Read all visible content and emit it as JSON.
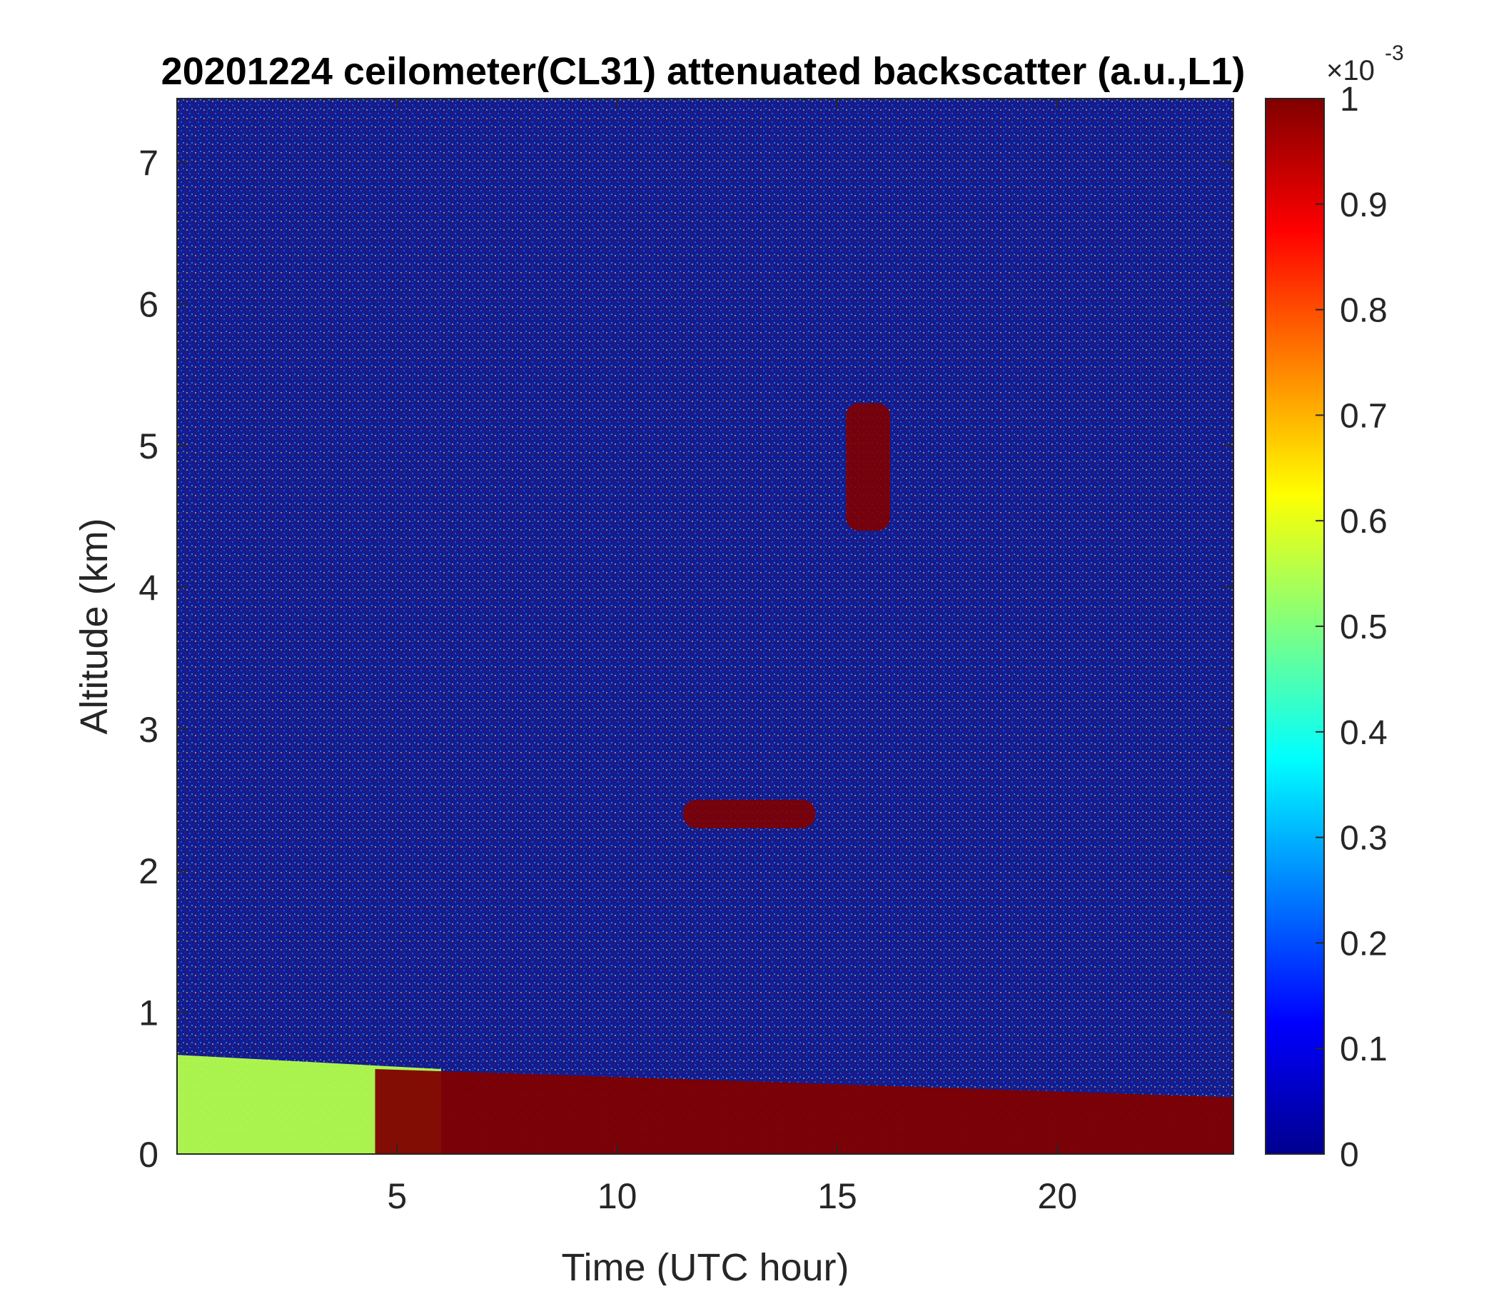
{
  "chart_data": {
    "type": "heatmap",
    "title": "20201224 ceilometer(CL31) attenuated backscatter (a.u.,L1)",
    "xlabel": "Time (UTC hour)",
    "ylabel": "Altitude (km)",
    "xlim": [
      0,
      24
    ],
    "ylim": [
      0,
      7.45
    ],
    "xticks": [
      5,
      10,
      15,
      20
    ],
    "yticks": [
      0,
      1,
      2,
      3,
      4,
      5,
      6,
      7
    ],
    "colorbar": {
      "colormap": "jet",
      "range": [
        0,
        1
      ],
      "exponent_label": "×10",
      "exponent": "-3",
      "ticks": [
        0,
        0.1,
        0.2,
        0.3,
        0.4,
        0.5,
        0.6,
        0.7,
        0.8,
        0.9,
        1
      ]
    },
    "features": [
      {
        "feature": "near-surface aerosol layer",
        "time_range": [
          0,
          6
        ],
        "altitude_top": [
          0.6,
          0.7
        ],
        "value": 0.55
      },
      {
        "feature": "saturated boundary layer",
        "time_range": [
          4.5,
          24
        ],
        "altitude_top": [
          0.4,
          0.6
        ],
        "value": 1
      },
      {
        "feature": "elevated cloud/aerosol layer",
        "time_range": [
          11.5,
          14.5
        ],
        "altitude": [
          2.3,
          2.5
        ],
        "value": 1
      },
      {
        "feature": "fall streaks",
        "time_range": [
          15.2,
          16.2
        ],
        "altitude": [
          4.4,
          5.3
        ],
        "value": 1
      }
    ]
  }
}
